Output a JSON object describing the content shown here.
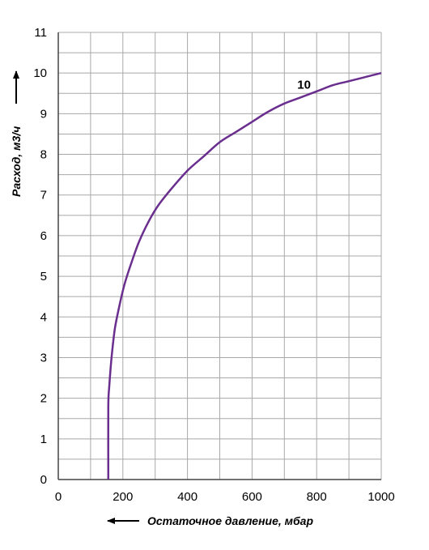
{
  "chart_data": {
    "type": "line",
    "xlabel": "Остаточное давление, мбар",
    "ylabel": "Расход, м3/ч",
    "xlim": [
      0,
      1000
    ],
    "ylim": [
      0,
      11
    ],
    "x_ticks": [
      0,
      200,
      400,
      600,
      800,
      1000
    ],
    "y_ticks": [
      0,
      1,
      2,
      3,
      4,
      5,
      6,
      7,
      8,
      9,
      10,
      11
    ],
    "grid": true,
    "x_grid_step": 100,
    "y_grid_step": 0.5,
    "series": [
      {
        "name": "10",
        "color": "#6a2e8e",
        "x": [
          155,
          155,
          158,
          165,
          175,
          190,
          205,
          225,
          250,
          280,
          310,
          350,
          400,
          450,
          500,
          550,
          600,
          650,
          700,
          750,
          800,
          850,
          900,
          950,
          1000
        ],
        "y": [
          0,
          1.8,
          2.3,
          3.0,
          3.7,
          4.3,
          4.8,
          5.3,
          5.85,
          6.35,
          6.75,
          7.15,
          7.6,
          7.95,
          8.3,
          8.55,
          8.8,
          9.05,
          9.25,
          9.4,
          9.55,
          9.7,
          9.8,
          9.9,
          10.0
        ]
      }
    ]
  }
}
